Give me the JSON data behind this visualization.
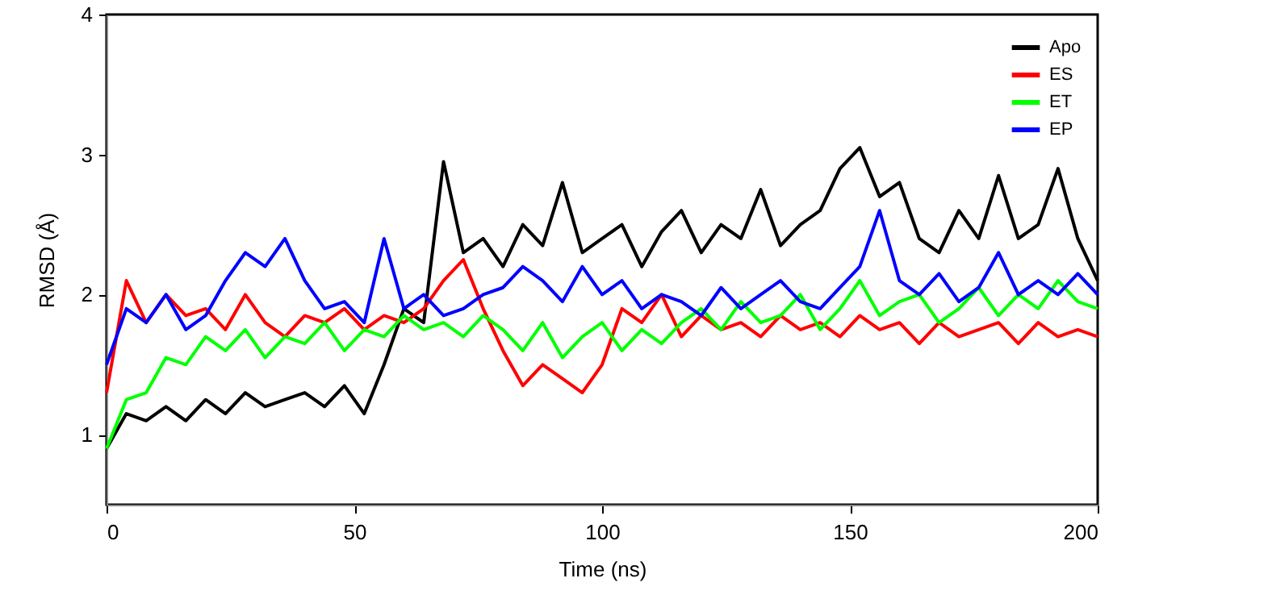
{
  "chart_data": {
    "type": "line",
    "xlabel": "Time (ns)",
    "ylabel": "RMSD (Å)",
    "x": [
      0,
      4,
      8,
      12,
      16,
      20,
      24,
      28,
      32,
      36,
      40,
      44,
      48,
      52,
      56,
      60,
      64,
      68,
      72,
      76,
      80,
      84,
      88,
      92,
      96,
      100,
      104,
      108,
      112,
      116,
      120,
      124,
      128,
      132,
      136,
      140,
      144,
      148,
      152,
      156,
      160,
      164,
      168,
      172,
      176,
      180,
      184,
      188,
      192,
      196,
      200
    ],
    "xlim": [
      0,
      200
    ],
    "xticks": [
      0,
      50,
      100,
      150,
      200
    ],
    "ylim": [
      0.5,
      4
    ],
    "yticks": [
      1,
      2,
      3,
      4
    ],
    "grid": false,
    "legend": "top right",
    "marker": "none",
    "line_style": "solid",
    "series": [
      {
        "name": "Apo",
        "color": "#000000",
        "values": [
          0.9,
          1.15,
          1.1,
          1.2,
          1.1,
          1.25,
          1.15,
          1.3,
          1.2,
          1.25,
          1.3,
          1.2,
          1.35,
          1.15,
          1.5,
          1.9,
          1.8,
          2.95,
          2.3,
          2.4,
          2.2,
          2.5,
          2.35,
          2.8,
          2.3,
          2.4,
          2.5,
          2.2,
          2.45,
          2.6,
          2.3,
          2.5,
          2.4,
          2.75,
          2.35,
          2.5,
          2.6,
          2.9,
          3.05,
          2.7,
          2.8,
          2.4,
          2.3,
          2.6,
          2.4,
          2.85,
          2.4,
          2.5,
          2.9,
          2.4,
          2.1
        ]
      },
      {
        "name": "ES",
        "color": "#ff0000",
        "values": [
          1.3,
          2.1,
          1.8,
          2.0,
          1.85,
          1.9,
          1.75,
          2.0,
          1.8,
          1.7,
          1.85,
          1.8,
          1.9,
          1.75,
          1.85,
          1.8,
          1.9,
          2.1,
          2.25,
          1.9,
          1.6,
          1.35,
          1.5,
          1.4,
          1.3,
          1.5,
          1.9,
          1.8,
          2.0,
          1.7,
          1.85,
          1.75,
          1.8,
          1.7,
          1.85,
          1.75,
          1.8,
          1.7,
          1.85,
          1.75,
          1.8,
          1.65,
          1.8,
          1.7,
          1.75,
          1.8,
          1.65,
          1.8,
          1.7,
          1.75,
          1.7
        ]
      },
      {
        "name": "ET",
        "color": "#00ff00",
        "values": [
          0.9,
          1.25,
          1.3,
          1.55,
          1.5,
          1.7,
          1.6,
          1.75,
          1.55,
          1.7,
          1.65,
          1.8,
          1.6,
          1.75,
          1.7,
          1.85,
          1.75,
          1.8,
          1.7,
          1.85,
          1.75,
          1.6,
          1.8,
          1.55,
          1.7,
          1.8,
          1.6,
          1.75,
          1.65,
          1.8,
          1.9,
          1.75,
          1.95,
          1.8,
          1.85,
          2.0,
          1.75,
          1.9,
          2.1,
          1.85,
          1.95,
          2.0,
          1.8,
          1.9,
          2.05,
          1.85,
          2.0,
          1.9,
          2.1,
          1.95,
          1.9
        ]
      },
      {
        "name": "EP",
        "color": "#0000ff",
        "values": [
          1.5,
          1.9,
          1.8,
          2.0,
          1.75,
          1.85,
          2.1,
          2.3,
          2.2,
          2.4,
          2.1,
          1.9,
          1.95,
          1.8,
          2.4,
          1.9,
          2.0,
          1.85,
          1.9,
          2.0,
          2.05,
          2.2,
          2.1,
          1.95,
          2.2,
          2.0,
          2.1,
          1.9,
          2.0,
          1.95,
          1.85,
          2.05,
          1.9,
          2.0,
          2.1,
          1.95,
          1.9,
          2.05,
          2.2,
          2.6,
          2.1,
          2.0,
          2.15,
          1.95,
          2.05,
          2.3,
          2.0,
          2.1,
          2.0,
          2.15,
          2.0
        ]
      }
    ]
  }
}
